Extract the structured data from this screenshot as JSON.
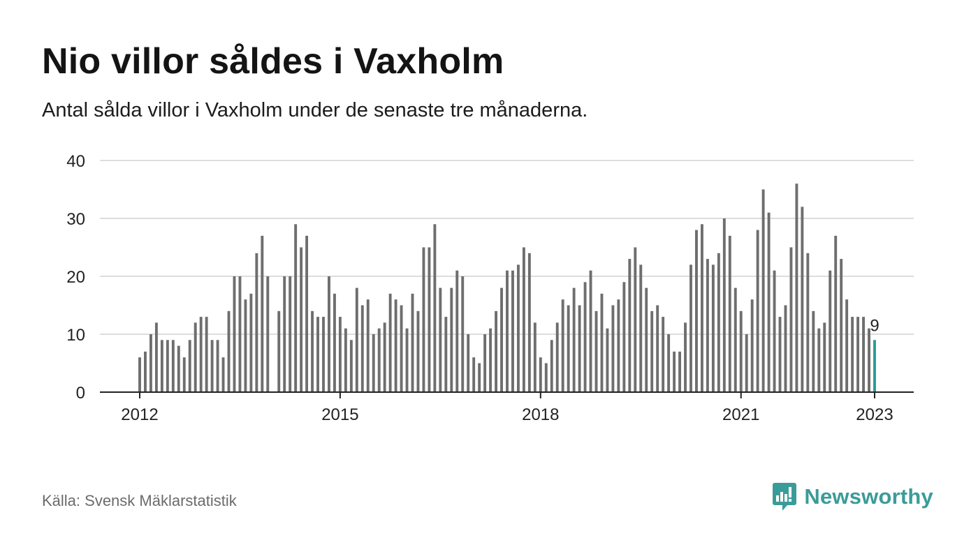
{
  "title": "Nio villor såldes i Vaxholm",
  "subtitle": "Antal sålda villor i Vaxholm under de senaste tre månaderna.",
  "source": "Källa: Svensk Mäklarstatistik",
  "brand": {
    "name": "Newsworthy",
    "icon": "newsworthy-logo-icon",
    "color": "#3a9c98"
  },
  "colors": {
    "bar": "#6e6e6e",
    "highlight": "#2a9d97",
    "grid": "#dddddd",
    "axis": "#222222",
    "text": "#222222"
  },
  "chart_data": {
    "type": "bar",
    "title": "Nio villor såldes i Vaxholm",
    "subtitle": "Antal sålda villor i Vaxholm under de senaste tre månaderna.",
    "xlabel": "",
    "ylabel": "",
    "ylim": [
      0,
      40
    ],
    "yticks": [
      0,
      10,
      20,
      30,
      40
    ],
    "xticks": [
      "2012",
      "2015",
      "2018",
      "2021",
      "2023"
    ],
    "x_start": "2012-01",
    "x_end": "2023-01",
    "grid": true,
    "highlight_label": "9",
    "series": [
      {
        "name": "",
        "x": [
          "2012-01",
          "2012-02",
          "2012-03",
          "2012-04",
          "2012-05",
          "2012-06",
          "2012-07",
          "2012-08",
          "2012-09",
          "2012-10",
          "2012-11",
          "2012-12",
          "2013-01",
          "2013-02",
          "2013-03",
          "2013-04",
          "2013-05",
          "2013-06",
          "2013-07",
          "2013-08",
          "2013-09",
          "2013-10",
          "2013-11",
          "2013-12",
          "2014-01",
          "2014-02",
          "2014-03",
          "2014-04",
          "2014-05",
          "2014-06",
          "2014-07",
          "2014-08",
          "2014-09",
          "2014-10",
          "2014-11",
          "2014-12",
          "2015-01",
          "2015-02",
          "2015-03",
          "2015-04",
          "2015-05",
          "2015-06",
          "2015-07",
          "2015-08",
          "2015-09",
          "2015-10",
          "2015-11",
          "2015-12",
          "2016-01",
          "2016-02",
          "2016-03",
          "2016-04",
          "2016-05",
          "2016-06",
          "2016-07",
          "2016-08",
          "2016-09",
          "2016-10",
          "2016-11",
          "2016-12",
          "2017-01",
          "2017-02",
          "2017-03",
          "2017-04",
          "2017-05",
          "2017-06",
          "2017-07",
          "2017-08",
          "2017-09",
          "2017-10",
          "2017-11",
          "2017-12",
          "2018-01",
          "2018-02",
          "2018-03",
          "2018-04",
          "2018-05",
          "2018-06",
          "2018-07",
          "2018-08",
          "2018-09",
          "2018-10",
          "2018-11",
          "2018-12",
          "2019-01",
          "2019-02",
          "2019-03",
          "2019-04",
          "2019-05",
          "2019-06",
          "2019-07",
          "2019-08",
          "2019-09",
          "2019-10",
          "2019-11",
          "2019-12",
          "2020-01",
          "2020-02",
          "2020-03",
          "2020-04",
          "2020-05",
          "2020-06",
          "2020-07",
          "2020-08",
          "2020-09",
          "2020-10",
          "2020-11",
          "2020-12",
          "2021-01",
          "2021-02",
          "2021-03",
          "2021-04",
          "2021-05",
          "2021-06",
          "2021-07",
          "2021-08",
          "2021-09",
          "2021-10",
          "2021-11",
          "2021-12",
          "2022-01",
          "2022-02",
          "2022-03",
          "2022-04",
          "2022-05",
          "2022-06",
          "2022-07",
          "2022-08",
          "2022-09",
          "2022-10",
          "2022-11",
          "2022-12",
          "2023-01"
        ],
        "values": [
          6,
          7,
          10,
          12,
          9,
          9,
          9,
          8,
          6,
          9,
          12,
          13,
          13,
          9,
          9,
          6,
          14,
          20,
          20,
          16,
          17,
          24,
          27,
          20,
          null,
          14,
          20,
          20,
          29,
          25,
          27,
          14,
          13,
          13,
          20,
          17,
          13,
          11,
          9,
          18,
          15,
          16,
          10,
          11,
          12,
          17,
          16,
          15,
          11,
          17,
          14,
          25,
          25,
          29,
          18,
          13,
          18,
          21,
          20,
          10,
          6,
          5,
          10,
          11,
          14,
          18,
          21,
          21,
          22,
          25,
          24,
          12,
          6,
          5,
          9,
          12,
          16,
          15,
          18,
          15,
          19,
          21,
          14,
          17,
          11,
          15,
          16,
          19,
          23,
          25,
          22,
          18,
          14,
          15,
          13,
          10,
          7,
          7,
          12,
          22,
          28,
          29,
          23,
          22,
          24,
          30,
          27,
          18,
          14,
          10,
          16,
          28,
          35,
          31,
          21,
          13,
          15,
          25,
          36,
          32,
          24,
          14,
          11,
          12,
          21,
          27,
          23,
          16,
          13,
          13,
          13,
          11,
          9
        ]
      }
    ]
  }
}
